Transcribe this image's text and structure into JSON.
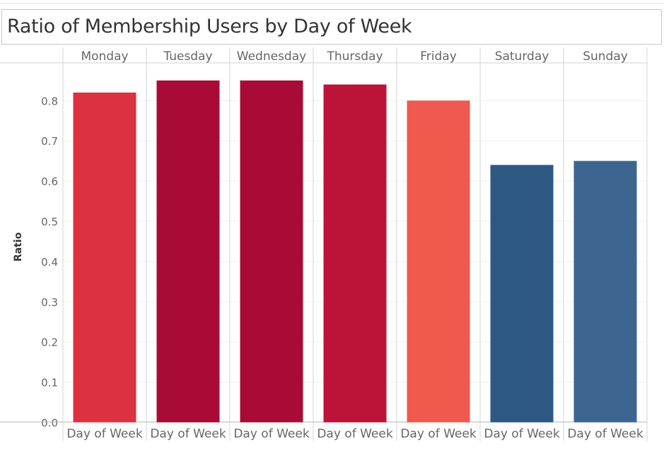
{
  "title": "Ratio of Membership Users by Day of Week",
  "chart_data": {
    "type": "bar",
    "title": "Ratio of Membership Users by Day of Week",
    "ylabel": "Ratio",
    "xlabel": "Day of Week",
    "categories": [
      "Monday",
      "Tuesday",
      "Wednesday",
      "Thursday",
      "Friday",
      "Saturday",
      "Sunday"
    ],
    "values": [
      0.82,
      0.85,
      0.85,
      0.84,
      0.8,
      0.64,
      0.65
    ],
    "colors": [
      "#dc3140",
      "#a80c36",
      "#a80c36",
      "#bc1438",
      "#f0594d",
      "#2e5884",
      "#3c6690"
    ],
    "ylim": [
      0,
      0.9
    ],
    "yticks": [
      "0.0",
      "0.1",
      "0.2",
      "0.3",
      "0.4",
      "0.5",
      "0.6",
      "0.7",
      "0.8"
    ],
    "grid": true,
    "legend": "none"
  }
}
